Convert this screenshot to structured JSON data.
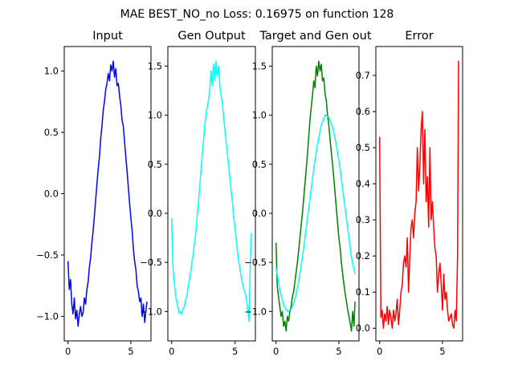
{
  "figure": {
    "suptitle": "MAE BEST_NO_no Loss: 0.16975 on function 128"
  },
  "chart_data": [
    {
      "type": "line",
      "title": "Input",
      "xlim": [
        -0.3,
        6.6
      ],
      "ylim": [
        -1.2,
        1.2
      ],
      "xticks": [
        0,
        5
      ],
      "xtick_labels": [
        "0",
        "5"
      ],
      "yticks": [
        -1.0,
        -0.5,
        0.0,
        0.5,
        1.0
      ],
      "ytick_labels": [
        "−1.0",
        "−0.5",
        "0.0",
        "0.5",
        "1.0"
      ],
      "series": [
        {
          "color": "#0000ff",
          "x": [
            0.0,
            0.1,
            0.2,
            0.3,
            0.4,
            0.5,
            0.6,
            0.7,
            0.8,
            0.9,
            1.0,
            1.1,
            1.2,
            1.3,
            1.4,
            1.5,
            1.6,
            1.7,
            1.8,
            1.9,
            2.0,
            2.1,
            2.2,
            2.3,
            2.4,
            2.5,
            2.6,
            2.7,
            2.8,
            2.9,
            3.0,
            3.1,
            3.2,
            3.3,
            3.4,
            3.5,
            3.6,
            3.7,
            3.8,
            3.9,
            4.0,
            4.1,
            4.2,
            4.3,
            4.4,
            4.5,
            4.6,
            4.7,
            4.8,
            4.9,
            5.0,
            5.1,
            5.2,
            5.3,
            5.4,
            5.5,
            5.6,
            5.7,
            5.8,
            5.9,
            6.0,
            6.1,
            6.2,
            6.28
          ],
          "y": [
            -0.55,
            -0.78,
            -0.7,
            -0.9,
            -0.98,
            -0.85,
            -1.02,
            -0.95,
            -1.08,
            -0.98,
            -0.92,
            -1.0,
            -0.97,
            -0.85,
            -0.9,
            -0.78,
            -0.72,
            -0.6,
            -0.52,
            -0.4,
            -0.3,
            -0.18,
            -0.05,
            0.08,
            0.2,
            0.3,
            0.45,
            0.55,
            0.68,
            0.75,
            0.85,
            0.9,
            0.98,
            0.92,
            1.05,
            1.0,
            1.08,
            0.95,
            1.02,
            0.88,
            0.9,
            0.8,
            0.72,
            0.6,
            0.55,
            0.42,
            0.3,
            0.18,
            0.05,
            -0.08,
            -0.2,
            -0.3,
            -0.45,
            -0.55,
            -0.62,
            -0.75,
            -0.8,
            -0.88,
            -0.85,
            -1.0,
            -0.9,
            -1.05,
            -0.95,
            -0.88
          ]
        }
      ]
    },
    {
      "type": "line",
      "title": "Gen Output",
      "xlim": [
        -0.3,
        6.6
      ],
      "ylim": [
        -1.3,
        1.7
      ],
      "xticks": [
        0,
        5
      ],
      "xtick_labels": [
        "0",
        "5"
      ],
      "yticks": [
        -1.0,
        -0.5,
        0.0,
        0.5,
        1.0,
        1.5
      ],
      "ytick_labels": [
        "−1.0",
        "−0.5",
        "0.0",
        "0.5",
        "1.0",
        "1.5"
      ],
      "series": [
        {
          "color": "#00ffff",
          "x": [
            0.0,
            0.1,
            0.2,
            0.3,
            0.4,
            0.5,
            0.6,
            0.7,
            0.8,
            0.9,
            1.0,
            1.1,
            1.2,
            1.3,
            1.4,
            1.5,
            1.6,
            1.7,
            1.8,
            1.9,
            2.0,
            2.1,
            2.2,
            2.3,
            2.4,
            2.5,
            2.6,
            2.7,
            2.8,
            2.9,
            3.0,
            3.1,
            3.2,
            3.3,
            3.4,
            3.5,
            3.6,
            3.7,
            3.8,
            3.9,
            4.0,
            4.1,
            4.2,
            4.3,
            4.4,
            4.5,
            4.6,
            4.7,
            4.8,
            4.9,
            5.0,
            5.1,
            5.2,
            5.3,
            5.4,
            5.5,
            5.6,
            5.7,
            5.8,
            5.9,
            6.0,
            6.1,
            6.2,
            6.28
          ],
          "y": [
            -0.05,
            -0.55,
            -0.7,
            -0.82,
            -0.9,
            -0.96,
            -1.02,
            -1.0,
            -1.03,
            -0.98,
            -0.95,
            -0.88,
            -0.85,
            -0.75,
            -0.68,
            -0.6,
            -0.5,
            -0.42,
            -0.3,
            -0.2,
            -0.05,
            0.1,
            0.25,
            0.42,
            0.58,
            0.72,
            0.88,
            1.0,
            1.08,
            1.15,
            1.25,
            1.45,
            1.3,
            1.52,
            1.35,
            1.55,
            1.4,
            1.5,
            1.3,
            1.2,
            1.1,
            0.98,
            0.85,
            0.72,
            0.6,
            0.48,
            0.35,
            0.22,
            0.1,
            -0.05,
            -0.15,
            -0.28,
            -0.4,
            -0.5,
            -0.58,
            -0.66,
            -0.72,
            -0.78,
            -0.82,
            -0.88,
            -0.98,
            -1.1,
            -0.5,
            -0.2
          ]
        }
      ]
    },
    {
      "type": "line",
      "title": "Target and Gen out",
      "xlim": [
        -0.3,
        6.6
      ],
      "ylim": [
        -1.3,
        1.7
      ],
      "xticks": [
        0,
        5
      ],
      "xtick_labels": [
        "0",
        "5"
      ],
      "yticks": [
        -1.0,
        -0.5,
        0.0,
        0.5,
        1.0,
        1.5
      ],
      "ytick_labels": [
        "−1.0",
        "−0.5",
        "0.0",
        "0.5",
        "1.0",
        "1.5"
      ],
      "series": [
        {
          "color": "#008000",
          "x": [
            0.0,
            0.1,
            0.2,
            0.3,
            0.4,
            0.5,
            0.6,
            0.7,
            0.8,
            0.9,
            1.0,
            1.1,
            1.2,
            1.3,
            1.4,
            1.5,
            1.6,
            1.7,
            1.8,
            1.9,
            2.0,
            2.1,
            2.2,
            2.3,
            2.4,
            2.5,
            2.6,
            2.7,
            2.8,
            2.9,
            3.0,
            3.1,
            3.2,
            3.3,
            3.4,
            3.5,
            3.6,
            3.7,
            3.8,
            3.9,
            4.0,
            4.1,
            4.2,
            4.3,
            4.4,
            4.5,
            4.6,
            4.7,
            4.8,
            4.9,
            5.0,
            5.1,
            5.2,
            5.3,
            5.4,
            5.5,
            5.6,
            5.7,
            5.8,
            5.9,
            6.0,
            6.1,
            6.2,
            6.28
          ],
          "y": [
            -0.3,
            -0.75,
            -0.85,
            -0.95,
            -1.05,
            -1.0,
            -1.15,
            -1.1,
            -1.2,
            -1.05,
            -1.1,
            -1.0,
            -0.95,
            -0.85,
            -0.8,
            -0.7,
            -0.6,
            -0.5,
            -0.38,
            -0.25,
            -0.12,
            0.0,
            0.15,
            0.3,
            0.45,
            0.6,
            0.78,
            0.95,
            1.08,
            1.2,
            1.35,
            1.28,
            1.5,
            1.4,
            1.55,
            1.45,
            1.52,
            1.35,
            1.38,
            1.22,
            1.15,
            1.0,
            0.9,
            0.75,
            0.62,
            0.5,
            0.35,
            0.2,
            0.05,
            -0.1,
            -0.25,
            -0.35,
            -0.5,
            -0.62,
            -0.72,
            -0.82,
            -0.9,
            -0.98,
            -1.05,
            -1.12,
            -1.2,
            -1.0,
            -1.15,
            -0.9
          ]
        },
        {
          "color": "#00ffff",
          "x": [
            0.0,
            0.3,
            0.6,
            0.9,
            1.2,
            1.5,
            1.8,
            2.1,
            2.4,
            2.7,
            3.0,
            3.3,
            3.6,
            3.9,
            4.2,
            4.5,
            4.8,
            5.1,
            5.4,
            5.7,
            6.0,
            6.28
          ],
          "y": [
            -0.55,
            -0.78,
            -0.93,
            -1.0,
            -0.98,
            -0.88,
            -0.7,
            -0.45,
            -0.15,
            0.15,
            0.45,
            0.7,
            0.9,
            1.0,
            0.98,
            0.88,
            0.7,
            0.45,
            0.15,
            -0.15,
            -0.45,
            -0.62
          ]
        }
      ]
    },
    {
      "type": "line",
      "title": "Error",
      "xlim": [
        -0.3,
        6.6
      ],
      "ylim": [
        -0.035,
        0.78
      ],
      "xticks": [
        0,
        5
      ],
      "xtick_labels": [
        "0",
        "5"
      ],
      "yticks": [
        0.0,
        0.1,
        0.2,
        0.3,
        0.4,
        0.5,
        0.6,
        0.7
      ],
      "ytick_labels": [
        "0.0",
        "0.1",
        "0.2",
        "0.3",
        "0.4",
        "0.5",
        "0.6",
        "0.7"
      ],
      "series": [
        {
          "color": "#ff0000",
          "x": [
            0.0,
            0.1,
            0.2,
            0.3,
            0.4,
            0.5,
            0.6,
            0.7,
            0.8,
            0.9,
            1.0,
            1.1,
            1.2,
            1.3,
            1.4,
            1.5,
            1.6,
            1.7,
            1.8,
            1.9,
            2.0,
            2.1,
            2.2,
            2.3,
            2.4,
            2.5,
            2.6,
            2.7,
            2.8,
            2.9,
            3.0,
            3.1,
            3.2,
            3.3,
            3.4,
            3.5,
            3.6,
            3.7,
            3.8,
            3.9,
            4.0,
            4.1,
            4.2,
            4.3,
            4.4,
            4.5,
            4.6,
            4.7,
            4.8,
            4.9,
            5.0,
            5.1,
            5.2,
            5.3,
            5.4,
            5.5,
            5.6,
            5.7,
            5.8,
            5.9,
            6.0,
            6.1,
            6.2,
            6.28
          ],
          "y": [
            0.53,
            0.03,
            0.05,
            0.0,
            0.04,
            0.02,
            0.06,
            0.01,
            0.05,
            0.03,
            0.0,
            0.05,
            0.02,
            0.04,
            0.08,
            0.01,
            0.05,
            0.1,
            0.12,
            0.18,
            0.2,
            0.17,
            0.25,
            0.1,
            0.2,
            0.28,
            0.3,
            0.25,
            0.32,
            0.35,
            0.5,
            0.38,
            0.45,
            0.55,
            0.6,
            0.4,
            0.55,
            0.35,
            0.42,
            0.28,
            0.5,
            0.3,
            0.35,
            0.28,
            0.22,
            0.2,
            0.1,
            0.15,
            0.18,
            0.12,
            0.05,
            0.15,
            0.08,
            0.1,
            0.05,
            0.02,
            0.03,
            0.04,
            0.01,
            0.0,
            0.05,
            0.02,
            0.2,
            0.74
          ]
        }
      ]
    }
  ]
}
